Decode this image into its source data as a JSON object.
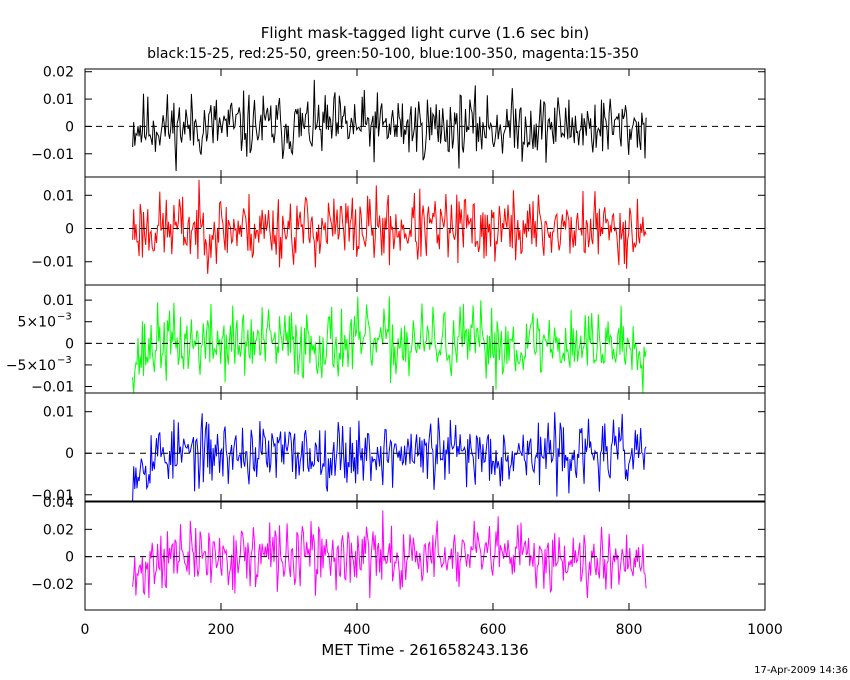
{
  "chart_data": {
    "type": "line",
    "title": "Flight mask-tagged light curve (1.6 sec bin)",
    "subtitle": "black:15-25, red:25-50, green:50-100, blue:100-350, magenta:15-350",
    "xlabel": "MET Time - 261658243.136",
    "xlim": [
      0,
      1000
    ],
    "x_ticks": [
      "0",
      "200",
      "400",
      "600",
      "800",
      "1000"
    ],
    "x_tick_values": [
      0,
      200,
      400,
      600,
      800,
      1000
    ],
    "data_x_range": [
      70,
      825
    ],
    "bin_seconds": 1.6,
    "timestamp": "17-Apr-2009 14:36",
    "series": [
      {
        "name": "black:15-25",
        "color": "#000000",
        "ylim": [
          -0.0185,
          0.021
        ],
        "y_ticks": [
          "0.02",
          "0.01",
          "0",
          "−0.01"
        ],
        "y_tick_values": [
          0.02,
          0.01,
          0,
          -0.01
        ],
        "amplitude": 0.0085,
        "start_offset": 0.0,
        "seed": 11
      },
      {
        "name": "red:25-50",
        "color": "#ff0000",
        "ylim": [
          -0.017,
          0.0155
        ],
        "y_ticks": [
          "0.01",
          "0",
          "−0.01"
        ],
        "y_tick_values": [
          0.01,
          0,
          -0.01
        ],
        "amplitude": 0.0075,
        "start_offset": 0.0,
        "seed": 23
      },
      {
        "name": "green:50-100",
        "color": "#00ff00",
        "ylim": [
          -0.0115,
          0.0135
        ],
        "y_ticks": [
          "0.01",
          "5×10",
          "0",
          "−5×10",
          "−0.01"
        ],
        "y_tick_exponents": [
          "",
          "−3",
          "",
          "−3",
          ""
        ],
        "y_tick_values": [
          0.01,
          0.005,
          0,
          -0.005,
          -0.01
        ],
        "amplitude": 0.006,
        "start_offset": -0.004,
        "seed": 37
      },
      {
        "name": "blue:100-350",
        "color": "#0000ff",
        "ylim": [
          -0.0115,
          0.0145
        ],
        "y_ticks": [
          "0.01",
          "0",
          "−0.01"
        ],
        "y_tick_values": [
          0.01,
          0,
          -0.01
        ],
        "amplitude": 0.0055,
        "start_offset": -0.004,
        "seed": 53
      },
      {
        "name": "magenta:15-350",
        "color": "#ff00ff",
        "ylim": [
          -0.039,
          0.04
        ],
        "y_ticks": [
          "0.04",
          "0.02",
          "0",
          "−0.02"
        ],
        "y_tick_values": [
          0.04,
          0.02,
          0,
          -0.02
        ],
        "amplitude": 0.017,
        "start_offset": -0.02,
        "seed": 71
      }
    ]
  }
}
